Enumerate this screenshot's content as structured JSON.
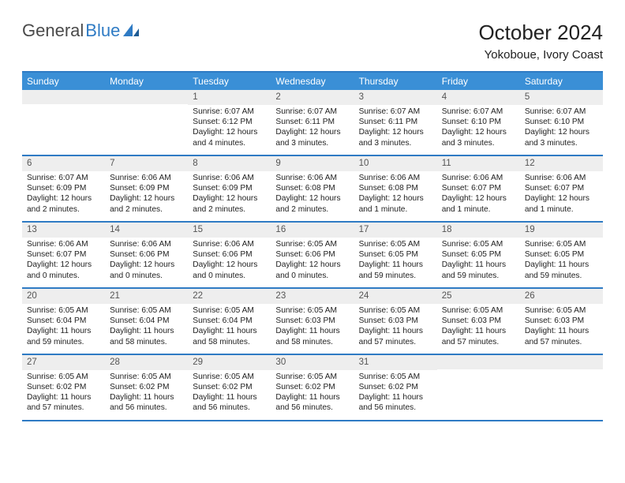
{
  "logo": {
    "part1": "General",
    "part2": "Blue"
  },
  "title": "October 2024",
  "location": "Yokoboue, Ivory Coast",
  "colors": {
    "accent": "#3a8fd6",
    "accent_border": "#2f7bc4",
    "header_bg": "#eeeeee",
    "text": "#222222",
    "logo_gray": "#4a4a4a",
    "logo_blue": "#2f7bc4"
  },
  "weekdays": [
    "Sunday",
    "Monday",
    "Tuesday",
    "Wednesday",
    "Thursday",
    "Friday",
    "Saturday"
  ],
  "weeks": [
    [
      {
        "blank": true
      },
      {
        "blank": true
      },
      {
        "num": "1",
        "sunrise": "Sunrise: 6:07 AM",
        "sunset": "Sunset: 6:12 PM",
        "daylight1": "Daylight: 12 hours",
        "daylight2": "and 4 minutes."
      },
      {
        "num": "2",
        "sunrise": "Sunrise: 6:07 AM",
        "sunset": "Sunset: 6:11 PM",
        "daylight1": "Daylight: 12 hours",
        "daylight2": "and 3 minutes."
      },
      {
        "num": "3",
        "sunrise": "Sunrise: 6:07 AM",
        "sunset": "Sunset: 6:11 PM",
        "daylight1": "Daylight: 12 hours",
        "daylight2": "and 3 minutes."
      },
      {
        "num": "4",
        "sunrise": "Sunrise: 6:07 AM",
        "sunset": "Sunset: 6:10 PM",
        "daylight1": "Daylight: 12 hours",
        "daylight2": "and 3 minutes."
      },
      {
        "num": "5",
        "sunrise": "Sunrise: 6:07 AM",
        "sunset": "Sunset: 6:10 PM",
        "daylight1": "Daylight: 12 hours",
        "daylight2": "and 3 minutes."
      }
    ],
    [
      {
        "num": "6",
        "sunrise": "Sunrise: 6:07 AM",
        "sunset": "Sunset: 6:09 PM",
        "daylight1": "Daylight: 12 hours",
        "daylight2": "and 2 minutes."
      },
      {
        "num": "7",
        "sunrise": "Sunrise: 6:06 AM",
        "sunset": "Sunset: 6:09 PM",
        "daylight1": "Daylight: 12 hours",
        "daylight2": "and 2 minutes."
      },
      {
        "num": "8",
        "sunrise": "Sunrise: 6:06 AM",
        "sunset": "Sunset: 6:09 PM",
        "daylight1": "Daylight: 12 hours",
        "daylight2": "and 2 minutes."
      },
      {
        "num": "9",
        "sunrise": "Sunrise: 6:06 AM",
        "sunset": "Sunset: 6:08 PM",
        "daylight1": "Daylight: 12 hours",
        "daylight2": "and 2 minutes."
      },
      {
        "num": "10",
        "sunrise": "Sunrise: 6:06 AM",
        "sunset": "Sunset: 6:08 PM",
        "daylight1": "Daylight: 12 hours",
        "daylight2": "and 1 minute."
      },
      {
        "num": "11",
        "sunrise": "Sunrise: 6:06 AM",
        "sunset": "Sunset: 6:07 PM",
        "daylight1": "Daylight: 12 hours",
        "daylight2": "and 1 minute."
      },
      {
        "num": "12",
        "sunrise": "Sunrise: 6:06 AM",
        "sunset": "Sunset: 6:07 PM",
        "daylight1": "Daylight: 12 hours",
        "daylight2": "and 1 minute."
      }
    ],
    [
      {
        "num": "13",
        "sunrise": "Sunrise: 6:06 AM",
        "sunset": "Sunset: 6:07 PM",
        "daylight1": "Daylight: 12 hours",
        "daylight2": "and 0 minutes."
      },
      {
        "num": "14",
        "sunrise": "Sunrise: 6:06 AM",
        "sunset": "Sunset: 6:06 PM",
        "daylight1": "Daylight: 12 hours",
        "daylight2": "and 0 minutes."
      },
      {
        "num": "15",
        "sunrise": "Sunrise: 6:06 AM",
        "sunset": "Sunset: 6:06 PM",
        "daylight1": "Daylight: 12 hours",
        "daylight2": "and 0 minutes."
      },
      {
        "num": "16",
        "sunrise": "Sunrise: 6:05 AM",
        "sunset": "Sunset: 6:06 PM",
        "daylight1": "Daylight: 12 hours",
        "daylight2": "and 0 minutes."
      },
      {
        "num": "17",
        "sunrise": "Sunrise: 6:05 AM",
        "sunset": "Sunset: 6:05 PM",
        "daylight1": "Daylight: 11 hours",
        "daylight2": "and 59 minutes."
      },
      {
        "num": "18",
        "sunrise": "Sunrise: 6:05 AM",
        "sunset": "Sunset: 6:05 PM",
        "daylight1": "Daylight: 11 hours",
        "daylight2": "and 59 minutes."
      },
      {
        "num": "19",
        "sunrise": "Sunrise: 6:05 AM",
        "sunset": "Sunset: 6:05 PM",
        "daylight1": "Daylight: 11 hours",
        "daylight2": "and 59 minutes."
      }
    ],
    [
      {
        "num": "20",
        "sunrise": "Sunrise: 6:05 AM",
        "sunset": "Sunset: 6:04 PM",
        "daylight1": "Daylight: 11 hours",
        "daylight2": "and 59 minutes."
      },
      {
        "num": "21",
        "sunrise": "Sunrise: 6:05 AM",
        "sunset": "Sunset: 6:04 PM",
        "daylight1": "Daylight: 11 hours",
        "daylight2": "and 58 minutes."
      },
      {
        "num": "22",
        "sunrise": "Sunrise: 6:05 AM",
        "sunset": "Sunset: 6:04 PM",
        "daylight1": "Daylight: 11 hours",
        "daylight2": "and 58 minutes."
      },
      {
        "num": "23",
        "sunrise": "Sunrise: 6:05 AM",
        "sunset": "Sunset: 6:03 PM",
        "daylight1": "Daylight: 11 hours",
        "daylight2": "and 58 minutes."
      },
      {
        "num": "24",
        "sunrise": "Sunrise: 6:05 AM",
        "sunset": "Sunset: 6:03 PM",
        "daylight1": "Daylight: 11 hours",
        "daylight2": "and 57 minutes."
      },
      {
        "num": "25",
        "sunrise": "Sunrise: 6:05 AM",
        "sunset": "Sunset: 6:03 PM",
        "daylight1": "Daylight: 11 hours",
        "daylight2": "and 57 minutes."
      },
      {
        "num": "26",
        "sunrise": "Sunrise: 6:05 AM",
        "sunset": "Sunset: 6:03 PM",
        "daylight1": "Daylight: 11 hours",
        "daylight2": "and 57 minutes."
      }
    ],
    [
      {
        "num": "27",
        "sunrise": "Sunrise: 6:05 AM",
        "sunset": "Sunset: 6:02 PM",
        "daylight1": "Daylight: 11 hours",
        "daylight2": "and 57 minutes."
      },
      {
        "num": "28",
        "sunrise": "Sunrise: 6:05 AM",
        "sunset": "Sunset: 6:02 PM",
        "daylight1": "Daylight: 11 hours",
        "daylight2": "and 56 minutes."
      },
      {
        "num": "29",
        "sunrise": "Sunrise: 6:05 AM",
        "sunset": "Sunset: 6:02 PM",
        "daylight1": "Daylight: 11 hours",
        "daylight2": "and 56 minutes."
      },
      {
        "num": "30",
        "sunrise": "Sunrise: 6:05 AM",
        "sunset": "Sunset: 6:02 PM",
        "daylight1": "Daylight: 11 hours",
        "daylight2": "and 56 minutes."
      },
      {
        "num": "31",
        "sunrise": "Sunrise: 6:05 AM",
        "sunset": "Sunset: 6:02 PM",
        "daylight1": "Daylight: 11 hours",
        "daylight2": "and 56 minutes."
      },
      {
        "blank": true
      },
      {
        "blank": true
      }
    ]
  ]
}
